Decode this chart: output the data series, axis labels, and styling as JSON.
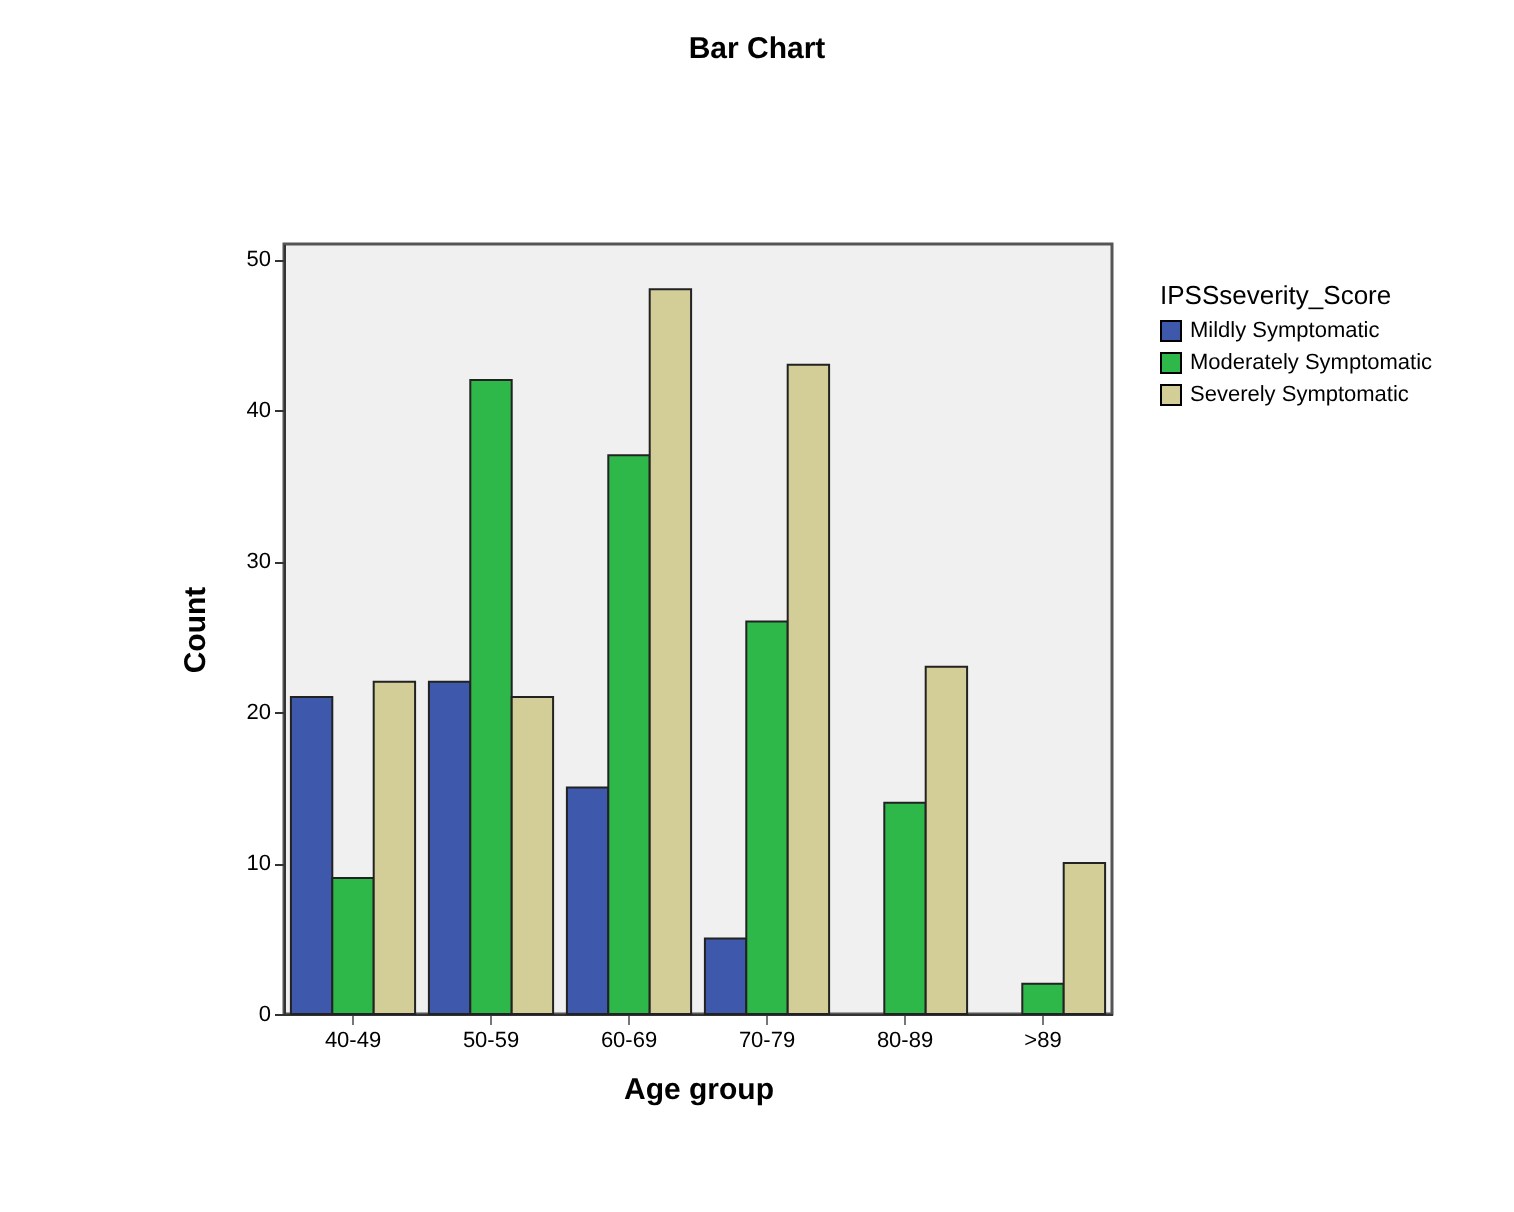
{
  "chart_data": {
    "type": "bar",
    "title": "Bar Chart",
    "xlabel": "Age group",
    "ylabel": "Count",
    "legend_title": "IPSSseverity_Score",
    "categories": [
      "40-49",
      "50-59",
      "60-69",
      "70-79",
      "80-89",
      ">89"
    ],
    "series": [
      {
        "name": "Mildly Symptomatic",
        "color": "#3e58ac",
        "values": [
          21,
          22,
          15,
          5,
          null,
          null
        ]
      },
      {
        "name": "Moderately Symptomatic",
        "color": "#2fb84a",
        "values": [
          9,
          42,
          37,
          26,
          14,
          2
        ]
      },
      {
        "name": "Severely Symptomatic",
        "color": "#d3ce98",
        "values": [
          22,
          21,
          48,
          43,
          23,
          10
        ]
      }
    ],
    "ylim": [
      0,
      51
    ],
    "yticks": [
      0,
      10,
      20,
      30,
      40,
      50
    ],
    "grid": false,
    "legend": "right"
  }
}
